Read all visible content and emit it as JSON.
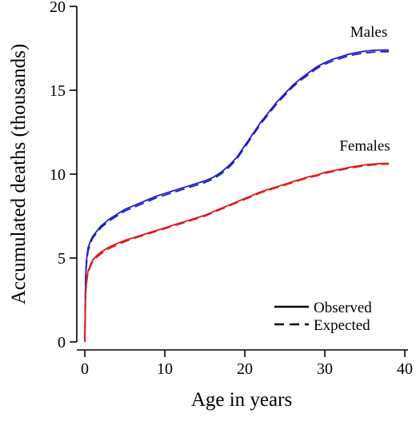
{
  "chart_data": {
    "type": "line",
    "xlabel": "Age in years",
    "ylabel": "Accumulated deaths (thousands)",
    "xlim": [
      0,
      40
    ],
    "ylim": [
      0,
      20
    ],
    "xticks": [
      0,
      10,
      20,
      30,
      40
    ],
    "yticks": [
      0,
      5,
      10,
      15,
      20
    ],
    "grid": false,
    "legend": {
      "position": "bottom-right",
      "entries": [
        {
          "label": "Observed",
          "style": "solid"
        },
        {
          "label": "Expected",
          "style": "dashed"
        }
      ]
    },
    "series": [
      {
        "name": "Males",
        "color": "#1c1cc8",
        "style": "solid",
        "label_at": [
          35.5,
          18.2
        ],
        "x": [
          0,
          0.1,
          0.2,
          0.4,
          0.7,
          1,
          1.5,
          2,
          3,
          4,
          5,
          6,
          7,
          8,
          9,
          10,
          11,
          12,
          13,
          14,
          15,
          16,
          17,
          18,
          19,
          20,
          21,
          22,
          23,
          24,
          25,
          26,
          27,
          28,
          29,
          30,
          31,
          32,
          33,
          34,
          35,
          36,
          37,
          38
        ],
        "y": [
          0,
          3.8,
          4.8,
          5.6,
          6.0,
          6.3,
          6.6,
          6.9,
          7.3,
          7.6,
          7.9,
          8.1,
          8.3,
          8.5,
          8.7,
          8.85,
          9.0,
          9.15,
          9.3,
          9.45,
          9.6,
          9.8,
          10.1,
          10.5,
          11.0,
          11.7,
          12.4,
          13.1,
          13.7,
          14.3,
          14.8,
          15.3,
          15.7,
          16.05,
          16.4,
          16.65,
          16.85,
          17.0,
          17.15,
          17.25,
          17.33,
          17.38,
          17.4,
          17.4
        ]
      },
      {
        "name": "Males",
        "color": "#1c1cc8",
        "style": "dashed",
        "x": [
          0,
          0.1,
          0.2,
          0.4,
          0.7,
          1,
          1.5,
          2,
          3,
          4,
          5,
          6,
          7,
          8,
          9,
          10,
          11,
          12,
          13,
          14,
          15,
          16,
          17,
          18,
          19,
          20,
          21,
          22,
          23,
          24,
          25,
          26,
          27,
          28,
          29,
          30,
          31,
          32,
          33,
          34,
          35,
          36,
          37,
          38
        ],
        "y": [
          0,
          3.6,
          4.6,
          5.4,
          5.85,
          6.2,
          6.5,
          6.8,
          7.2,
          7.5,
          7.8,
          8.0,
          8.2,
          8.4,
          8.6,
          8.75,
          8.9,
          9.05,
          9.2,
          9.35,
          9.5,
          9.7,
          10.0,
          10.4,
          10.9,
          11.6,
          12.3,
          13.0,
          13.6,
          14.2,
          14.7,
          15.2,
          15.6,
          15.95,
          16.3,
          16.55,
          16.75,
          16.9,
          17.05,
          17.15,
          17.22,
          17.27,
          17.3,
          17.3
        ]
      },
      {
        "name": "Females",
        "color": "#e01818",
        "style": "solid",
        "label_at": [
          35.0,
          11.4
        ],
        "x": [
          0,
          0.1,
          0.2,
          0.4,
          0.7,
          1,
          1.5,
          2,
          3,
          4,
          5,
          6,
          7,
          8,
          9,
          10,
          11,
          12,
          13,
          14,
          15,
          16,
          17,
          18,
          19,
          20,
          21,
          22,
          23,
          24,
          25,
          26,
          27,
          28,
          29,
          30,
          31,
          32,
          33,
          34,
          35,
          36,
          37,
          38
        ],
        "y": [
          0,
          2.9,
          3.6,
          4.2,
          4.6,
          4.9,
          5.15,
          5.35,
          5.65,
          5.85,
          6.05,
          6.2,
          6.35,
          6.5,
          6.65,
          6.8,
          6.95,
          7.1,
          7.25,
          7.4,
          7.55,
          7.75,
          7.95,
          8.15,
          8.35,
          8.55,
          8.75,
          8.95,
          9.1,
          9.25,
          9.4,
          9.55,
          9.7,
          9.85,
          9.95,
          10.1,
          10.2,
          10.3,
          10.4,
          10.48,
          10.55,
          10.6,
          10.63,
          10.65
        ]
      },
      {
        "name": "Females",
        "color": "#e01818",
        "style": "dashed",
        "x": [
          0,
          0.1,
          0.2,
          0.4,
          0.7,
          1,
          1.5,
          2,
          3,
          4,
          5,
          6,
          7,
          8,
          9,
          10,
          11,
          12,
          13,
          14,
          15,
          16,
          17,
          18,
          19,
          20,
          21,
          22,
          23,
          24,
          25,
          26,
          27,
          28,
          29,
          30,
          31,
          32,
          33,
          34,
          35,
          36,
          37,
          38
        ],
        "y": [
          0,
          2.8,
          3.5,
          4.1,
          4.5,
          4.8,
          5.05,
          5.25,
          5.55,
          5.78,
          5.98,
          6.15,
          6.3,
          6.45,
          6.6,
          6.75,
          6.9,
          7.05,
          7.2,
          7.35,
          7.5,
          7.7,
          7.9,
          8.1,
          8.3,
          8.5,
          8.7,
          8.9,
          9.05,
          9.2,
          9.35,
          9.5,
          9.65,
          9.8,
          9.9,
          10.05,
          10.15,
          10.25,
          10.35,
          10.43,
          10.5,
          10.55,
          10.58,
          10.6
        ]
      }
    ]
  }
}
